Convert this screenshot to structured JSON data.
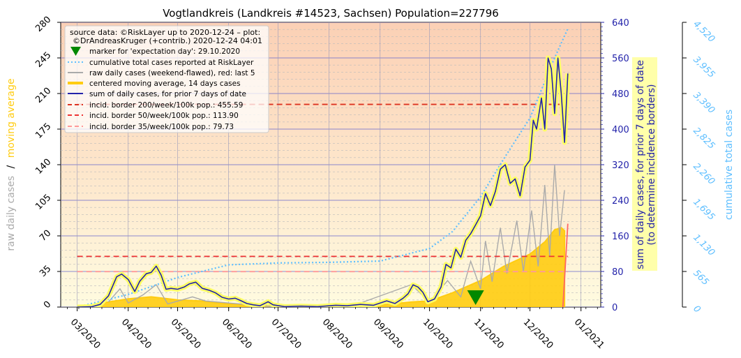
{
  "chart_data": {
    "type": "line",
    "title": "Vogtlandkreis (Landkreis #14523, Sachsen) Population=227796",
    "ylabel_left_parts": [
      "raw daily cases",
      "/",
      "moving average"
    ],
    "ylabel_right": [
      "sum of daily cases, for prior 7 days of date",
      "(to determine incidence borders)"
    ],
    "ylabel_far_right": "cumulative total cases",
    "x_ticks": [
      "03/2020",
      "04/2020",
      "05/2020",
      "06/2020",
      "07/2020",
      "08/2020",
      "09/2020",
      "10/2020",
      "11/2020",
      "12/2020",
      "01/2021"
    ],
    "left_axis": {
      "ticks": [
        0,
        35,
        70,
        105,
        140,
        175,
        210,
        245,
        280
      ],
      "ylim": [
        0,
        280
      ]
    },
    "right_axis": {
      "ticks": [
        0,
        80,
        160,
        240,
        320,
        400,
        480,
        560,
        640
      ],
      "ylim": [
        0,
        640
      ]
    },
    "far_right_axis": {
      "ticks": [
        "0",
        "565",
        "1,130",
        "1,695",
        "2,260",
        "2,825",
        "3,390",
        "3,955",
        "4,520"
      ],
      "ylim": [
        0,
        4520
      ]
    },
    "legend": {
      "source": [
        "source data: ©RiskLayer up to 2020-12-24 – plot:",
        "©DrAndreasKruger (+contrib.) 2020-12-24 04:01"
      ],
      "entries": [
        "marker for 'expectation day': 29.10.2020",
        "cumulative total cases reported at RiskLayer",
        "raw daily cases (weekend-flawed), red: last 5",
        "centered moving average, 14 days cases",
        "sum of daily cases, for prior 7 days of date",
        "incid. border 200/week/100k pop.: 455.59",
        "incid. border 50/week/100k pop.: 113.90",
        "incid. border 35/week/100k pop.: 79.73"
      ]
    },
    "incidence_borders": [
      455.59,
      113.9,
      79.73
    ],
    "expectation_marker_date": "2020-10-29",
    "series_weekly_sum": [
      [
        "2020-03-01",
        0
      ],
      [
        "2020-03-10",
        1
      ],
      [
        "2020-03-15",
        6
      ],
      [
        "2020-03-20",
        25
      ],
      [
        "2020-03-25",
        68
      ],
      [
        "2020-03-28",
        74
      ],
      [
        "2020-04-01",
        62
      ],
      [
        "2020-04-05",
        35
      ],
      [
        "2020-04-08",
        58
      ],
      [
        "2020-04-12",
        75
      ],
      [
        "2020-04-15",
        78
      ],
      [
        "2020-04-18",
        92
      ],
      [
        "2020-04-21",
        72
      ],
      [
        "2020-04-24",
        40
      ],
      [
        "2020-04-27",
        42
      ],
      [
        "2020-05-01",
        40
      ],
      [
        "2020-05-05",
        45
      ],
      [
        "2020-05-08",
        52
      ],
      [
        "2020-05-12",
        56
      ],
      [
        "2020-05-16",
        42
      ],
      [
        "2020-05-20",
        38
      ],
      [
        "2020-05-24",
        32
      ],
      [
        "2020-05-28",
        22
      ],
      [
        "2020-06-01",
        18
      ],
      [
        "2020-06-05",
        20
      ],
      [
        "2020-06-08",
        15
      ],
      [
        "2020-06-12",
        8
      ],
      [
        "2020-06-16",
        5
      ],
      [
        "2020-06-20",
        3
      ],
      [
        "2020-06-25",
        12
      ],
      [
        "2020-06-28",
        5
      ],
      [
        "2020-07-05",
        1
      ],
      [
        "2020-07-15",
        2
      ],
      [
        "2020-07-25",
        1
      ],
      [
        "2020-08-05",
        4
      ],
      [
        "2020-08-12",
        3
      ],
      [
        "2020-08-20",
        6
      ],
      [
        "2020-08-28",
        4
      ],
      [
        "2020-09-05",
        14
      ],
      [
        "2020-09-10",
        8
      ],
      [
        "2020-09-15",
        20
      ],
      [
        "2020-09-18",
        30
      ],
      [
        "2020-09-21",
        50
      ],
      [
        "2020-09-24",
        45
      ],
      [
        "2020-09-27",
        33
      ],
      [
        "2020-09-30",
        12
      ],
      [
        "2020-10-04",
        18
      ],
      [
        "2020-10-08",
        45
      ],
      [
        "2020-10-11",
        96
      ],
      [
        "2020-10-14",
        88
      ],
      [
        "2020-10-17",
        130
      ],
      [
        "2020-10-20",
        112
      ],
      [
        "2020-10-23",
        150
      ],
      [
        "2020-10-26",
        165
      ],
      [
        "2020-10-29",
        185
      ],
      [
        "2020-11-01",
        205
      ],
      [
        "2020-11-04",
        255
      ],
      [
        "2020-11-07",
        228
      ],
      [
        "2020-11-10",
        260
      ],
      [
        "2020-11-13",
        310
      ],
      [
        "2020-11-16",
        320
      ],
      [
        "2020-11-19",
        278
      ],
      [
        "2020-11-22",
        288
      ],
      [
        "2020-11-25",
        250
      ],
      [
        "2020-11-28",
        315
      ],
      [
        "2020-12-01",
        330
      ],
      [
        "2020-12-03",
        420
      ],
      [
        "2020-12-05",
        400
      ],
      [
        "2020-12-08",
        470
      ],
      [
        "2020-12-10",
        400
      ],
      [
        "2020-12-12",
        560
      ],
      [
        "2020-12-14",
        535
      ],
      [
        "2020-12-16",
        435
      ],
      [
        "2020-12-18",
        560
      ],
      [
        "2020-12-20",
        480
      ],
      [
        "2020-12-22",
        370
      ],
      [
        "2020-12-24",
        525
      ]
    ],
    "series_cumulative": [
      [
        "2020-03-01",
        0
      ],
      [
        "2020-04-01",
        200
      ],
      [
        "2020-05-01",
        470
      ],
      [
        "2020-06-01",
        670
      ],
      [
        "2020-07-01",
        700
      ],
      [
        "2020-08-01",
        710
      ],
      [
        "2020-09-01",
        730
      ],
      [
        "2020-10-01",
        930
      ],
      [
        "2020-10-15",
        1200
      ],
      [
        "2020-11-01",
        1750
      ],
      [
        "2020-11-15",
        2350
      ],
      [
        "2020-12-01",
        3000
      ],
      [
        "2020-12-15",
        3900
      ],
      [
        "2020-12-24",
        4420
      ]
    ],
    "series_raw_daily": [
      [
        "2020-03-20",
        5
      ],
      [
        "2020-03-27",
        18
      ],
      [
        "2020-04-01",
        4
      ],
      [
        "2020-04-10",
        12
      ],
      [
        "2020-04-18",
        22
      ],
      [
        "2020-04-25",
        3
      ],
      [
        "2020-05-10",
        10
      ],
      [
        "2020-05-18",
        6
      ],
      [
        "2020-06-01",
        4
      ],
      [
        "2020-07-01",
        0
      ],
      [
        "2020-08-15",
        1
      ],
      [
        "2020-09-20",
        22
      ],
      [
        "2020-10-01",
        5
      ],
      [
        "2020-10-12",
        26
      ],
      [
        "2020-10-20",
        10
      ],
      [
        "2020-10-26",
        45
      ],
      [
        "2020-11-01",
        18
      ],
      [
        "2020-11-04",
        65
      ],
      [
        "2020-11-08",
        25
      ],
      [
        "2020-11-13",
        78
      ],
      [
        "2020-11-17",
        33
      ],
      [
        "2020-11-23",
        85
      ],
      [
        "2020-11-27",
        35
      ],
      [
        "2020-12-02",
        95
      ],
      [
        "2020-12-06",
        40
      ],
      [
        "2020-12-10",
        120
      ],
      [
        "2020-12-13",
        50
      ],
      [
        "2020-12-16",
        140
      ],
      [
        "2020-12-19",
        70
      ],
      [
        "2020-12-22",
        115
      ]
    ],
    "series_moving_avg": [
      [
        "2020-03-01",
        0
      ],
      [
        "2020-03-20",
        5
      ],
      [
        "2020-04-01",
        8
      ],
      [
        "2020-04-15",
        10
      ],
      [
        "2020-05-01",
        7
      ],
      [
        "2020-05-15",
        6
      ],
      [
        "2020-06-01",
        3
      ],
      [
        "2020-07-01",
        0.5
      ],
      [
        "2020-08-01",
        0.5
      ],
      [
        "2020-09-01",
        2
      ],
      [
        "2020-09-20",
        5
      ],
      [
        "2020-10-01",
        6
      ],
      [
        "2020-10-15",
        14
      ],
      [
        "2020-11-01",
        26
      ],
      [
        "2020-11-15",
        40
      ],
      [
        "2020-12-01",
        52
      ],
      [
        "2020-12-10",
        64
      ],
      [
        "2020-12-16",
        76
      ],
      [
        "2020-12-20",
        78
      ],
      [
        "2020-12-22",
        75
      ]
    ],
    "colors": {
      "background_top": "#fbd0b5",
      "background_bottom": "#fffbe0",
      "weekly_sum": "#2323aa",
      "weekly_sum_glow": "#ffff66",
      "cumulative": "#5fbfff",
      "raw_daily": "#aaaaaa",
      "moving_avg": "#ffcc11",
      "border_200": "#dd3322",
      "border_50": "#ee3333",
      "border_35": "#ff9999",
      "marker": "#008800",
      "left_axis_label_moving": "#ffcc11",
      "left_axis_label_raw": "#aaaaaa",
      "right_axis": "#2323aa",
      "far_right_axis": "#5fbfff"
    }
  }
}
